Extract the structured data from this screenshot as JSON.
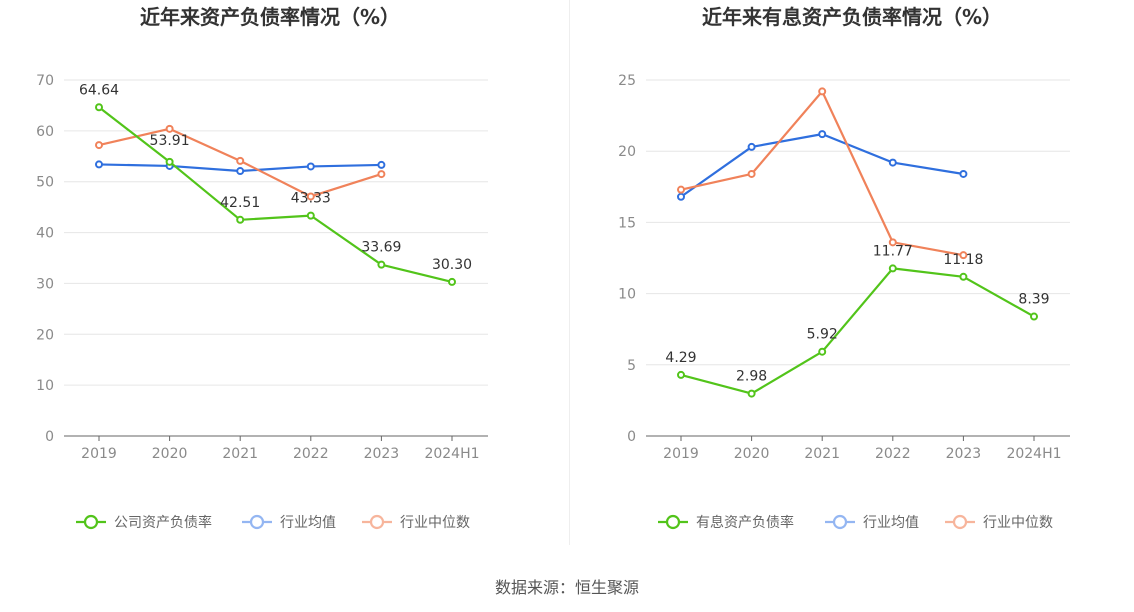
{
  "source_text": "数据来源：恒生聚源",
  "chart_data": [
    {
      "type": "line",
      "title": "近年来资产负债率情况（%）",
      "categories": [
        "2019",
        "2020",
        "2021",
        "2022",
        "2023",
        "2024H1"
      ],
      "ylim": [
        0,
        70
      ],
      "yticks": [
        0,
        10,
        20,
        30,
        40,
        50,
        60,
        70
      ],
      "grid": true,
      "legend_position": "bottom",
      "series": [
        {
          "name": "公司资产负债率",
          "color": "#52c41a",
          "values": [
            64.64,
            53.91,
            42.51,
            43.33,
            33.69,
            30.3
          ],
          "labels": [
            "64.64",
            "53.91",
            "42.51",
            "43.33",
            "33.69",
            "30.30"
          ]
        },
        {
          "name": "行业均值",
          "color": "#2f6fde",
          "values": [
            53.4,
            53.1,
            52.1,
            53.0,
            53.3,
            null
          ]
        },
        {
          "name": "行业中位数",
          "color": "#f0825a",
          "values": [
            57.2,
            60.4,
            54.1,
            47.1,
            51.5,
            null
          ]
        }
      ]
    },
    {
      "type": "line",
      "title": "近年来有息资产负债率情况（%）",
      "categories": [
        "2019",
        "2020",
        "2021",
        "2022",
        "2023",
        "2024H1"
      ],
      "ylim": [
        0,
        25
      ],
      "yticks": [
        0,
        5,
        10,
        15,
        20,
        25
      ],
      "grid": true,
      "legend_position": "bottom",
      "series": [
        {
          "name": "有息资产负债率",
          "color": "#52c41a",
          "values": [
            4.29,
            2.98,
            5.92,
            11.77,
            11.18,
            8.39
          ],
          "labels": [
            "4.29",
            "2.98",
            "5.92",
            "11.77",
            "11.18",
            "8.39"
          ]
        },
        {
          "name": "行业均值",
          "color": "#2f6fde",
          "values": [
            16.8,
            20.3,
            21.2,
            19.2,
            18.4,
            null
          ]
        },
        {
          "name": "行业中位数",
          "color": "#f0825a",
          "values": [
            17.3,
            18.4,
            24.2,
            13.6,
            12.7,
            null
          ]
        }
      ]
    }
  ]
}
